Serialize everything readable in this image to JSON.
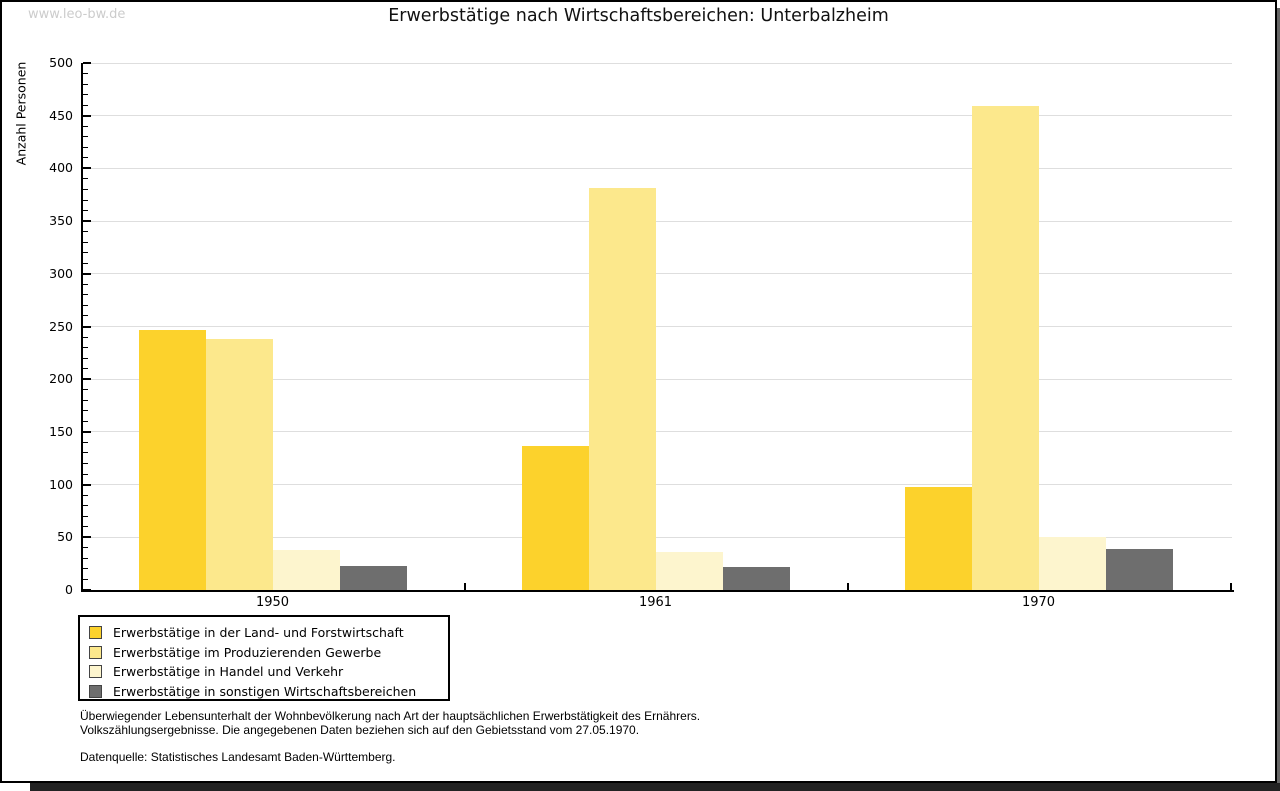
{
  "watermark": "www.leo-bw.de",
  "title": "Erwerbstätige nach Wirtschaftsbereichen: Unterbalzheim",
  "chart_data": {
    "type": "bar",
    "title": "Erwerbstätige nach Wirtschaftsbereichen: Unterbalzheim",
    "categories": [
      "1950",
      "1961",
      "1970"
    ],
    "series": [
      {
        "name": "Erwerbstätige in der Land- und Forstwirtschaft",
        "color": "#FCD22C",
        "values": [
          247,
          137,
          98
        ]
      },
      {
        "name": "Erwerbstätige im Produzierenden Gewerbe",
        "color": "#FCE88C",
        "values": [
          238,
          381,
          459
        ]
      },
      {
        "name": "Erwerbstätige in Handel und Verkehr",
        "color": "#FDF5CE",
        "values": [
          38,
          36,
          50
        ]
      },
      {
        "name": "Erwerbstätige in sonstigen Wirtschaftsbereichen",
        "color": "#6E6E6E",
        "values": [
          23,
          22,
          39
        ]
      }
    ],
    "xlabel": "",
    "ylabel": "Anzahl Personen",
    "ylim": [
      0,
      500
    ],
    "ytick_step": 50,
    "ytick_minor_step": 10,
    "grid": true,
    "legend_position": "bottom-left"
  },
  "footnotes": {
    "line1": "Überwiegender Lebensunterhalt der Wohnbevölkerung nach Art der hauptsächlichen Erwerbstätigkeit des Ernährers.",
    "line2": "Volkszählungsergebnisse. Die angegebenen Daten beziehen sich auf den Gebietsstand vom 27.05.1970.",
    "source": "Datenquelle: Statistisches Landesamt Baden-Württemberg."
  },
  "colors": {
    "grid": "#DEDEDE",
    "axis": "#000000",
    "watermark": "#CCCCCC"
  }
}
